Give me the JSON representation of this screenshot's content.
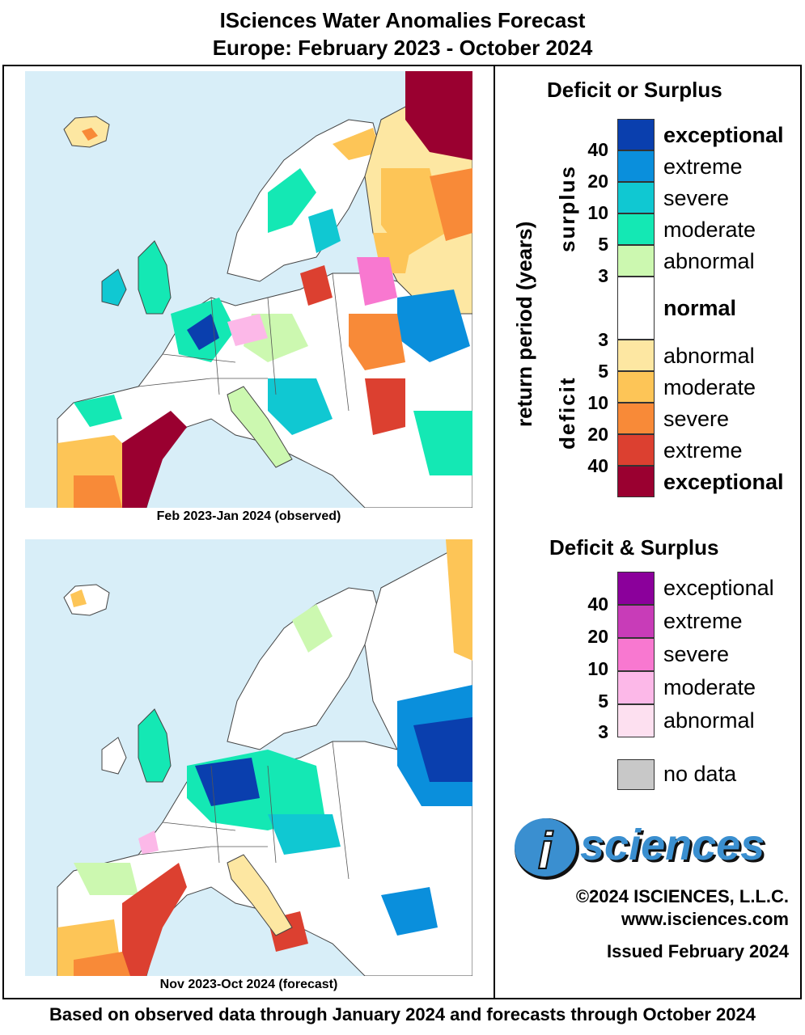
{
  "header": {
    "title_line1": "ISciences Water Anomalies Forecast",
    "title_line2": "Europe: February 2023 - October 2024"
  },
  "maps": {
    "top_caption": "Feb 2023-Jan 2024 (observed)",
    "bottom_caption": "Nov 2023-Oct 2024 (forecast)"
  },
  "legend": {
    "deficit_or_surplus": {
      "heading": "Deficit or Surplus",
      "axis_label": "return period (years)",
      "surplus_label": "surplus",
      "deficit_label": "deficit",
      "surplus": [
        {
          "label": "exceptional",
          "color": "#0a3fae"
        },
        {
          "label": "extreme",
          "color": "#0a8fdc"
        },
        {
          "label": "severe",
          "color": "#10c8d2"
        },
        {
          "label": "moderate",
          "color": "#14e8b4"
        },
        {
          "label": "abnormal",
          "color": "#ccf8b0"
        }
      ],
      "normal": {
        "label": "normal",
        "color": "#ffffff"
      },
      "deficit": [
        {
          "label": "abnormal",
          "color": "#fde7a2"
        },
        {
          "label": "moderate",
          "color": "#fdc557"
        },
        {
          "label": "severe",
          "color": "#f88a38"
        },
        {
          "label": "extreme",
          "color": "#dc4030"
        },
        {
          "label": "exceptional",
          "color": "#9a0030"
        }
      ],
      "surplus_numbers": [
        "40",
        "20",
        "10",
        "5",
        "3"
      ],
      "deficit_numbers": [
        "3",
        "5",
        "10",
        "20",
        "40"
      ]
    },
    "deficit_and_surplus": {
      "heading": "Deficit & Surplus",
      "items": [
        {
          "label": "exceptional",
          "color": "#8b009b"
        },
        {
          "label": "extreme",
          "color": "#c83cb8"
        },
        {
          "label": "severe",
          "color": "#f878d0"
        },
        {
          "label": "moderate",
          "color": "#fcb8e8"
        },
        {
          "label": "abnormal",
          "color": "#fde0f0"
        }
      ],
      "numbers": [
        "40",
        "20",
        "10",
        "5",
        "3"
      ]
    },
    "no_data": {
      "label": "no data",
      "color": "#c8c8c8"
    }
  },
  "branding": {
    "logo_letter": "i",
    "logo_text": "sciences",
    "copyright": "©2024 ISCIENCES, L.L.C.",
    "website": "www.isciences.com",
    "issued": "Issued February 2024"
  },
  "footer": {
    "note": "Based on observed data through January 2024 and forecasts through October 2024"
  }
}
